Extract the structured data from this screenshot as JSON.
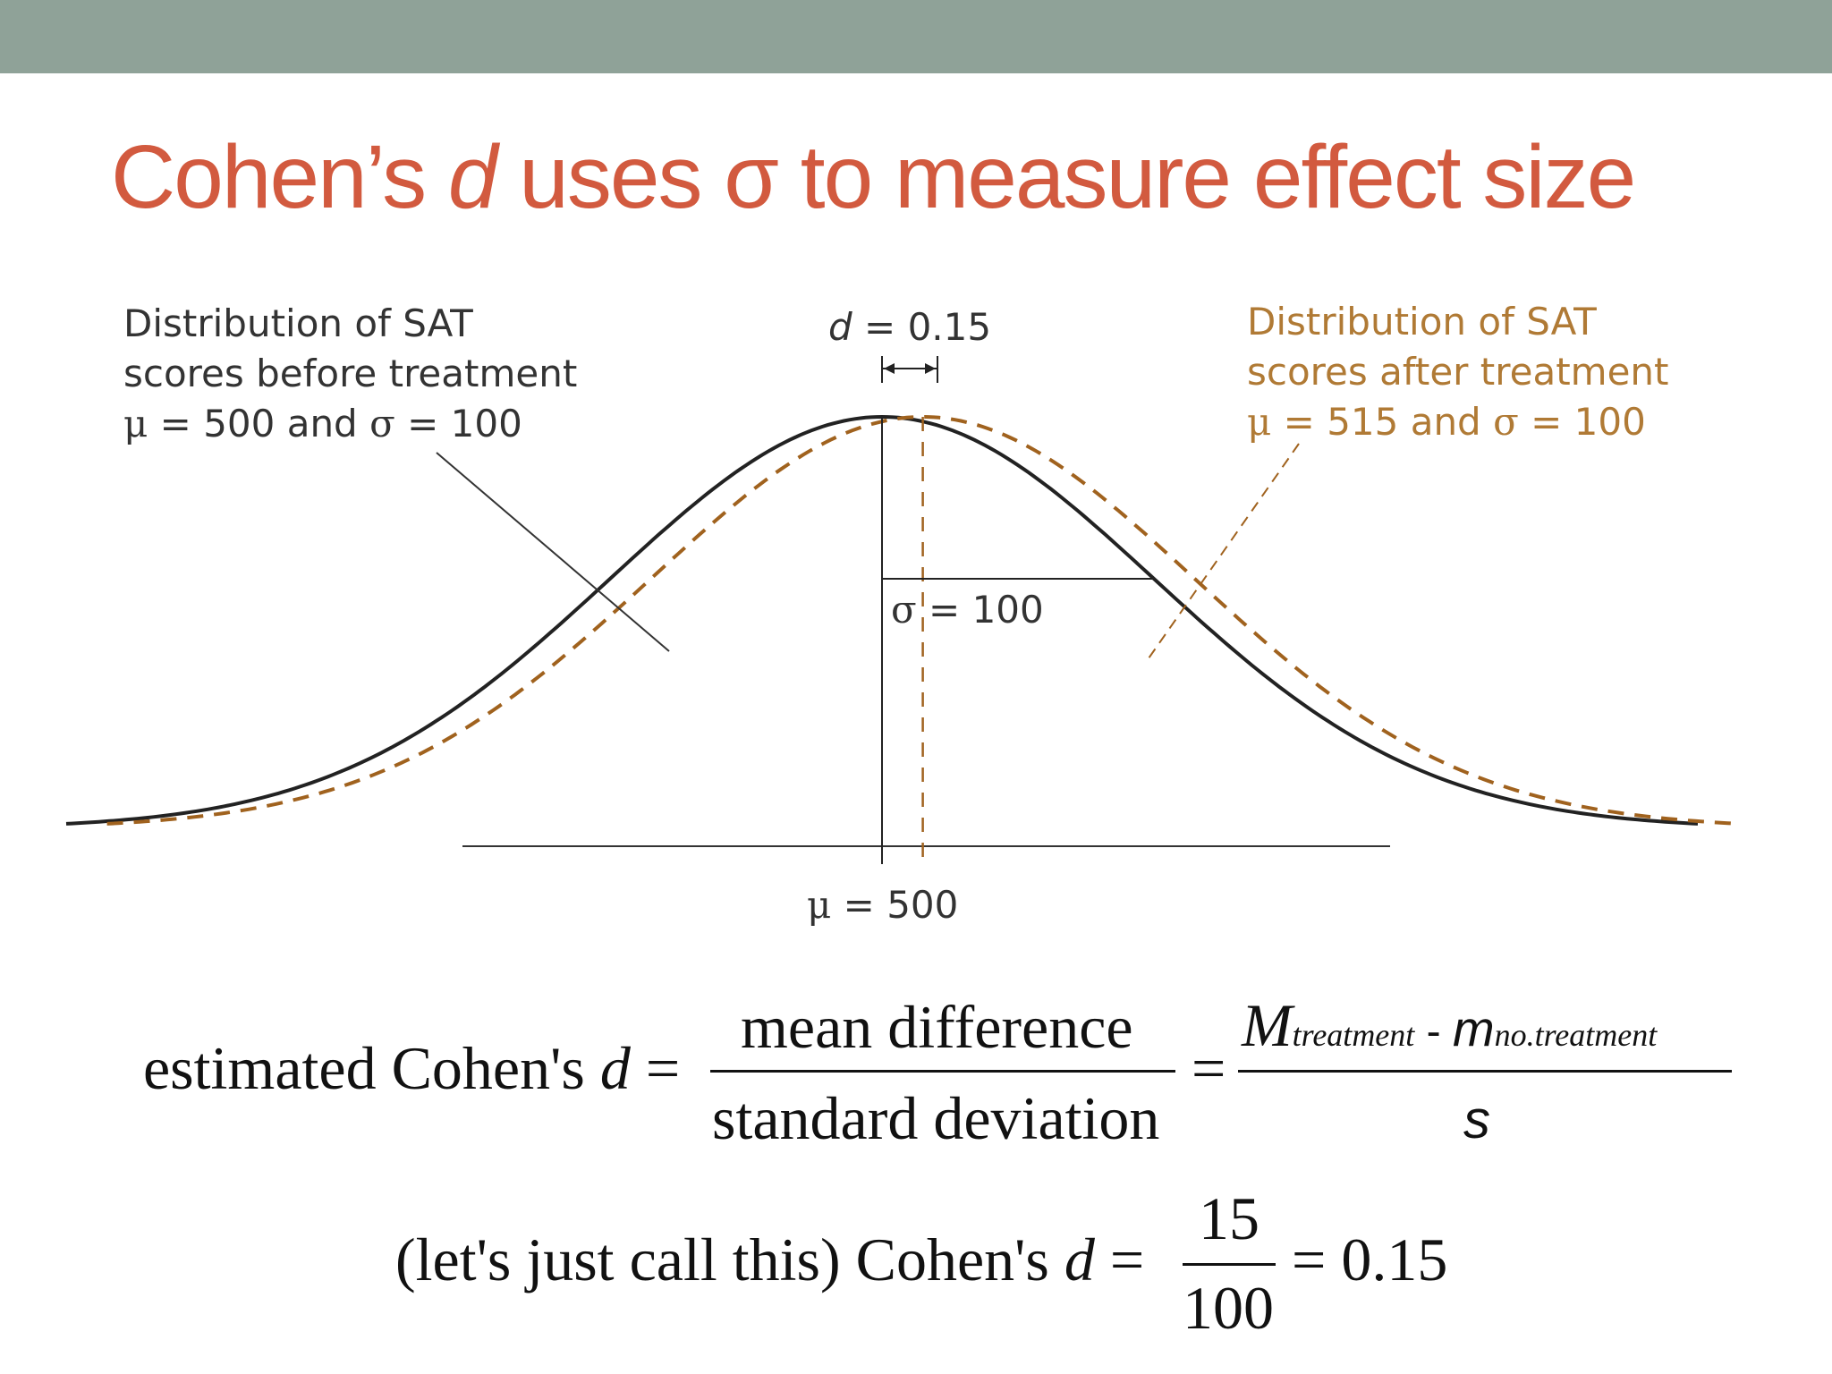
{
  "slide": {
    "title_pre": "Cohen’s ",
    "title_var": "d",
    "title_post": " uses σ to measure effect size"
  },
  "figure": {
    "left_label": {
      "line1": "Distribution of SAT",
      "line2": "scores before treatment",
      "line3_mu": "μ",
      "line3_a": " = 500 and ",
      "line3_sigma": "σ",
      "line3_b": " = 100"
    },
    "right_label": {
      "line1": "Distribution of SAT",
      "line2": "scores after treatment",
      "line3_mu": "μ",
      "line3_a": " = 515 and ",
      "line3_sigma": "σ",
      "line3_b": " = 100"
    },
    "d_label_var": "d",
    "d_label_value": " = 0.15",
    "sigma_label_sym": "σ",
    "sigma_label_value": " = 100",
    "mu_label_sym": "μ",
    "mu_label_value": " = 500"
  },
  "chart_data": {
    "type": "line",
    "series": [
      {
        "mean": 500,
        "sd": 100,
        "style": "solid",
        "color": "#222222"
      },
      {
        "mean": 515,
        "sd": 100,
        "style": "dashed",
        "color": "#a0621e"
      }
    ]
  },
  "formula1": {
    "lhs": "estimated Cohen's ",
    "lhs_var": "d",
    "eq": " =",
    "numerator": "mean difference",
    "denominator": "standard deviation",
    "eq2": "=",
    "num2_M": "M",
    "num2_M_sub": "treatment",
    "num2_minus": " - ",
    "num2_m": "m",
    "num2_m_sub": "no.treatment",
    "den2": "s"
  },
  "formula2": {
    "lhs": "(let's just call this) Cohen's ",
    "lhs_var": "d",
    "eq": " =",
    "numerator": "15",
    "denominator": "100",
    "result": "= 0.15"
  }
}
